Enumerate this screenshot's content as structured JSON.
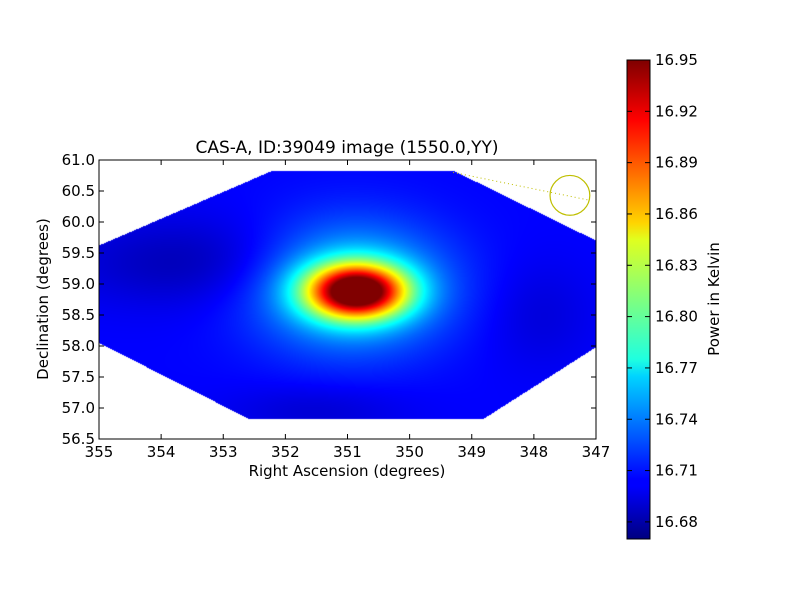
{
  "chart_data": {
    "type": "heatmap",
    "title": "CAS-A, ID:39049 image (1550.0,YY)",
    "xlabel": "Right Ascension (degrees)",
    "ylabel": "Declination (degrees)",
    "xlim": [
      355,
      347
    ],
    "ylim": [
      56.5,
      61.0
    ],
    "x_ticks": [
      "355",
      "354",
      "353",
      "352",
      "351",
      "350",
      "349",
      "348",
      "347"
    ],
    "y_ticks": [
      "56.5",
      "57.0",
      "57.5",
      "58.0",
      "58.5",
      "59.0",
      "59.5",
      "60.0",
      "60.5",
      "61.0"
    ],
    "colorbar": {
      "label": "Power in Kelvin",
      "min": 16.67,
      "max": 16.95,
      "ticks": [
        "16.68",
        "16.71",
        "16.74",
        "16.77",
        "16.80",
        "16.83",
        "16.86",
        "16.89",
        "16.92",
        "16.95"
      ],
      "colormap": "jet"
    },
    "footprint_polygon": [
      [
        355.0,
        59.62
      ],
      [
        352.2,
        60.83
      ],
      [
        349.3,
        60.83
      ],
      [
        347.0,
        59.7
      ],
      [
        347.0,
        57.98
      ],
      [
        348.8,
        56.83
      ],
      [
        352.6,
        56.83
      ],
      [
        355.0,
        58.05
      ]
    ],
    "background_level": 16.705,
    "features": [
      {
        "ra": 350.85,
        "dec": 58.88,
        "sigma_ra": 0.55,
        "sigma_dec": 0.3,
        "amplitude": 0.24
      },
      {
        "ra": 350.95,
        "dec": 58.95,
        "sigma_ra": 1.05,
        "sigma_dec": 0.7,
        "amplitude": 0.07
      },
      {
        "ra": 353.5,
        "dec": 59.35,
        "sigma_ra": 1.4,
        "sigma_dec": 0.5,
        "amplitude": -0.02
      },
      {
        "ra": 347.9,
        "dec": 58.5,
        "sigma_ra": 0.6,
        "sigma_dec": 0.6,
        "amplitude": -0.01
      },
      {
        "ra": 351.5,
        "dec": 56.95,
        "sigma_ra": 1.0,
        "sigma_dec": 0.3,
        "amplitude": -0.012
      }
    ],
    "beam_marker": {
      "ra": 347.42,
      "dec": 60.43,
      "radius_deg": 0.32,
      "color": "#bfbf00"
    },
    "beam_line": {
      "from": [
        349.3,
        60.8
      ],
      "to": [
        347.1,
        60.35
      ]
    }
  }
}
